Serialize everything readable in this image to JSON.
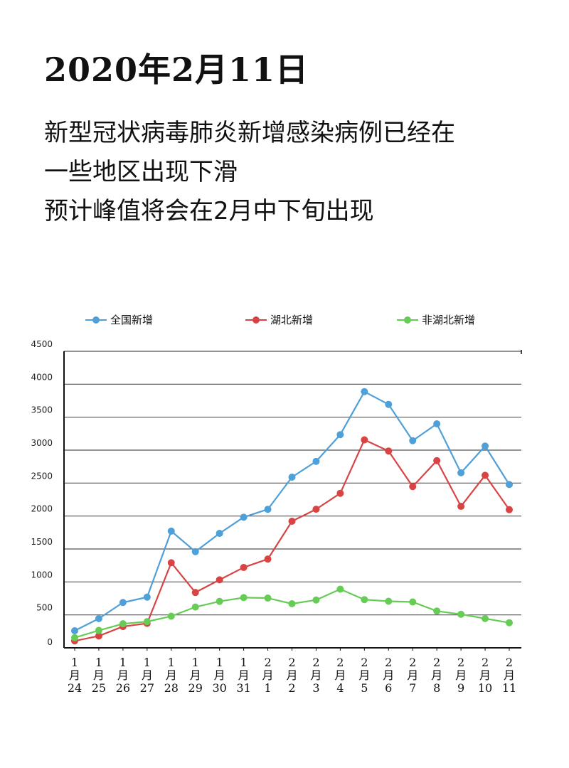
{
  "date_title": "2020年2月11日",
  "headline": [
    "新型冠状病毒肺炎新增感染病例已经在",
    "一些地区出现下滑",
    "预计峰值将会在2月中下旬出现"
  ],
  "chart_data": {
    "type": "line",
    "title": "",
    "xlabel": "",
    "ylabel": "",
    "legend_position": "top",
    "grid": true,
    "ylim": [
      0,
      4500
    ],
    "yticks": [
      "0",
      "500",
      "1000",
      "1500",
      "2000",
      "2500",
      "3000",
      "3500",
      "4000",
      "4500"
    ],
    "categories": [
      {
        "month": "1",
        "unit": "月",
        "day": "24"
      },
      {
        "month": "1",
        "unit": "月",
        "day": "25"
      },
      {
        "month": "1",
        "unit": "月",
        "day": "26"
      },
      {
        "month": "1",
        "unit": "月",
        "day": "27"
      },
      {
        "month": "1",
        "unit": "月",
        "day": "28"
      },
      {
        "month": "1",
        "unit": "月",
        "day": "29"
      },
      {
        "month": "1",
        "unit": "月",
        "day": "30"
      },
      {
        "month": "1",
        "unit": "月",
        "day": "31"
      },
      {
        "month": "2",
        "unit": "月",
        "day": "1"
      },
      {
        "month": "2",
        "unit": "月",
        "day": "2"
      },
      {
        "month": "2",
        "unit": "月",
        "day": "3"
      },
      {
        "month": "2",
        "unit": "月",
        "day": "4"
      },
      {
        "month": "2",
        "unit": "月",
        "day": "5"
      },
      {
        "month": "2",
        "unit": "月",
        "day": "6"
      },
      {
        "month": "2",
        "unit": "月",
        "day": "7"
      },
      {
        "month": "2",
        "unit": "月",
        "day": "8"
      },
      {
        "month": "2",
        "unit": "月",
        "day": "9"
      },
      {
        "month": "2",
        "unit": "月",
        "day": "10"
      },
      {
        "month": "2",
        "unit": "月",
        "day": "11"
      }
    ],
    "series": [
      {
        "name": "全国新增",
        "color": "#4f9fd8",
        "values": [
          259,
          444,
          688,
          769,
          1771,
          1459,
          1737,
          1982,
          2102,
          2590,
          2829,
          3235,
          3887,
          3694,
          3143,
          3399,
          2656,
          3062,
          2478
        ]
      },
      {
        "name": "湖北新增",
        "color": "#d84444",
        "values": [
          105,
          180,
          323,
          371,
          1291,
          840,
          1032,
          1220,
          1347,
          1921,
          2103,
          2345,
          3156,
          2987,
          2447,
          2841,
          2147,
          2618,
          2097
        ]
      },
      {
        "name": "非湖北新增",
        "color": "#66cc55",
        "values": [
          154,
          264,
          365,
          398,
          480,
          619,
          705,
          762,
          755,
          669,
          726,
          890,
          731,
          707,
          696,
          558,
          509,
          444,
          381
        ]
      }
    ]
  }
}
